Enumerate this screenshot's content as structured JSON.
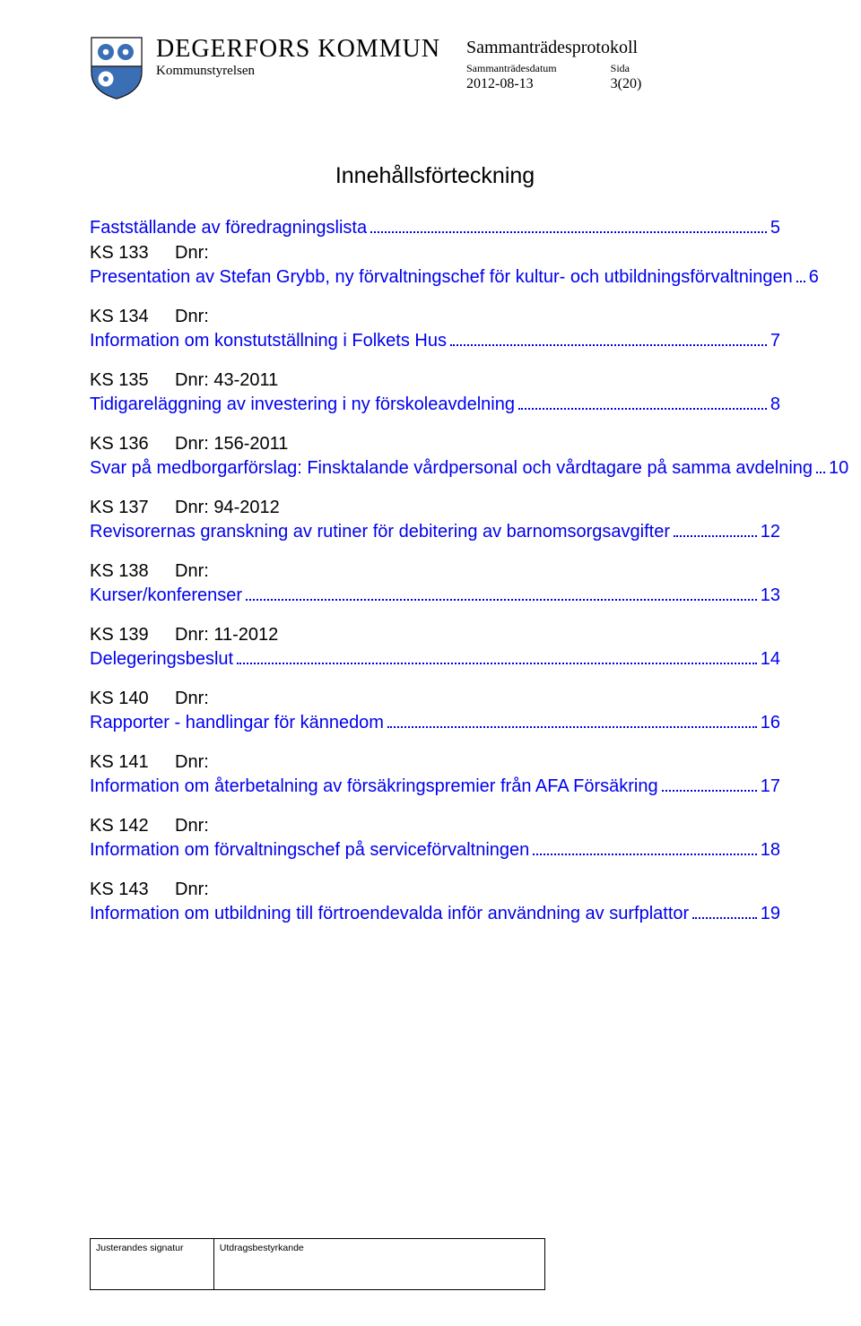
{
  "header": {
    "municipality_name": "DEGERFORS KOMMUN",
    "board_name": "Kommunstyrelsen",
    "right_title": "Sammanträdesprotokoll",
    "date_label": "Sammanträdesdatum",
    "date_value": "2012-08-13",
    "page_label": "Sida",
    "page_value": "3(20)",
    "crest_colors": {
      "background": "#e9e9e9",
      "top_field": "#ffffff",
      "bottom_field": "#3b6fb5",
      "gear": "#3b6fb5",
      "gear_bottom": "#ffffff",
      "outline": "#1a1a1a"
    }
  },
  "toc": {
    "title": "Innehållsförteckning",
    "entries": [
      {
        "title": "Fastställande av föredragningslista",
        "page": "5",
        "ks": "KS 133",
        "dnr": "Dnr:",
        "desc": "Presentation av Stefan Grybb, ny förvaltningschef för kultur- och utbildningsförvaltningen",
        "desc_page": "6"
      },
      {
        "ks": "KS 134",
        "dnr": "Dnr:",
        "desc": "Information om konstutställning i Folkets Hus",
        "desc_page": "7"
      },
      {
        "ks": "KS 135",
        "dnr": "Dnr: 43-2011",
        "desc": "Tidigareläggning av investering i ny förskoleavdelning",
        "desc_page": "8"
      },
      {
        "ks": "KS 136",
        "dnr": "Dnr: 156-2011",
        "desc": "Svar på medborgarförslag: Finsktalande vårdpersonal och vårdtagare på samma avdelning",
        "desc_page": "10"
      },
      {
        "ks": "KS 137",
        "dnr": "Dnr: 94-2012",
        "desc": "Revisorernas granskning av rutiner för debitering av barnomsorgsavgifter",
        "desc_page": "12"
      },
      {
        "ks": "KS 138",
        "dnr": "Dnr:",
        "desc": "Kurser/konferenser",
        "desc_page": "13"
      },
      {
        "ks": "KS 139",
        "dnr": "Dnr: 11-2012",
        "desc": "Delegeringsbeslut",
        "desc_page": "14"
      },
      {
        "ks": "KS 140",
        "dnr": "Dnr:",
        "desc": "Rapporter - handlingar för kännedom",
        "desc_page": "16"
      },
      {
        "ks": "KS 141",
        "dnr": "Dnr:",
        "desc": "Information om återbetalning av försäkringspremier från AFA Försäkring",
        "desc_page": "17"
      },
      {
        "ks": "KS 142",
        "dnr": "Dnr:",
        "desc": "Information om förvaltningschef på serviceförvaltningen",
        "desc_page": "18"
      },
      {
        "ks": "KS 143",
        "dnr": "Dnr:",
        "desc": "Information om utbildning till förtroendevalda inför användning av surfplattor",
        "desc_page": "19"
      }
    ]
  },
  "footer": {
    "sig_label": "Justerandes signatur",
    "bestyrk_label": "Utdragsbestyrkande"
  }
}
